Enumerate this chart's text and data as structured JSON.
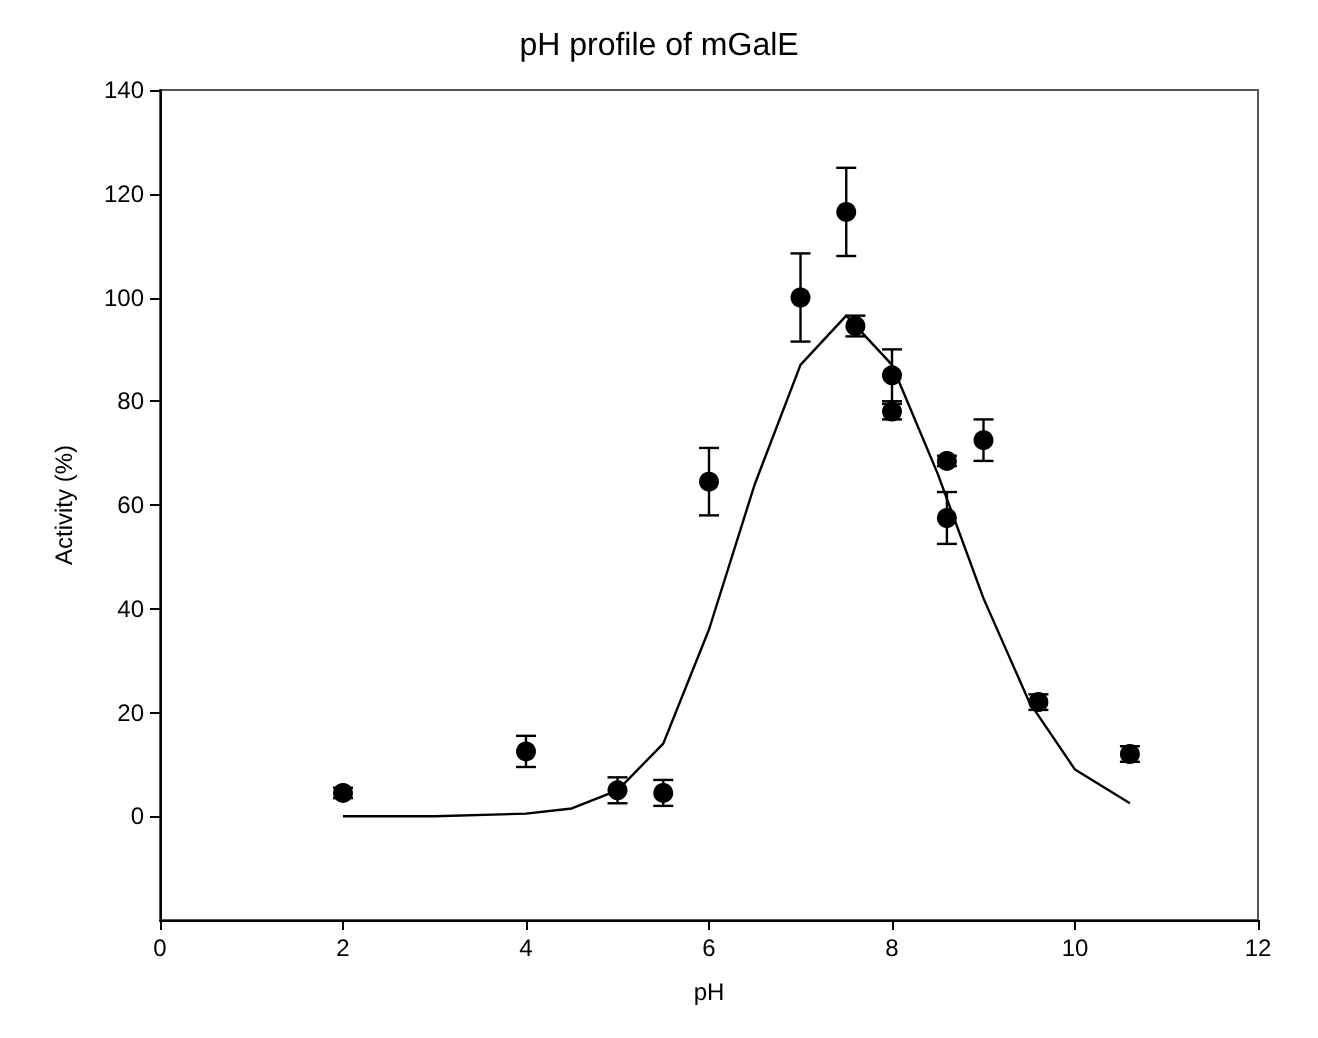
{
  "chart_data": {
    "type": "scatter",
    "title": "pH profile of mGalE",
    "xlabel": "pH",
    "ylabel": "Activity (%)",
    "xlim": [
      0,
      12
    ],
    "xticks": [
      0,
      2,
      4,
      6,
      8,
      10,
      12
    ],
    "ylim": [
      -20,
      140
    ],
    "yticks": [
      0,
      20,
      40,
      60,
      80,
      100,
      120,
      140
    ],
    "grid": false,
    "series": [
      {
        "color": "#000000",
        "marker": "circle",
        "x": [
          2,
          4,
          5,
          5.5,
          6,
          7,
          7.5,
          7.6,
          8,
          8,
          8.6,
          8.6,
          9,
          9.6,
          10.6
        ],
        "values": [
          4.5,
          12.5,
          5,
          4.5,
          64.5,
          100,
          116.5,
          94.5,
          85,
          78,
          68.5,
          57.5,
          72.5,
          22,
          12
        ],
        "errors": [
          1,
          3,
          2.5,
          2.5,
          6.5,
          8.5,
          8.5,
          2,
          5,
          1.5,
          1,
          5,
          4,
          1.5,
          1.5
        ]
      },
      {
        "type": "line",
        "color": "#000000",
        "marker": "none",
        "line_style": "solid",
        "x": [
          2,
          3,
          4,
          4.5,
          5,
          5.5,
          6,
          6.5,
          7,
          7.5,
          8,
          8.5,
          9,
          9.5,
          10,
          10.6
        ],
        "values": [
          0,
          0,
          0.5,
          1.5,
          5,
          14,
          36,
          64,
          87,
          96.5,
          87,
          66,
          42,
          22,
          9,
          2.5
        ]
      }
    ]
  }
}
